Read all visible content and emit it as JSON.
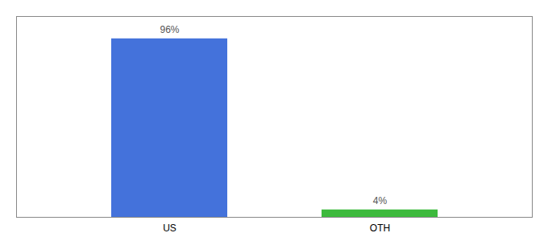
{
  "chart_data": {
    "type": "bar",
    "categories": [
      "US",
      "OTH"
    ],
    "values": [
      96,
      4
    ],
    "value_labels": [
      "96%",
      "4%"
    ],
    "colors": [
      "#4472db",
      "#3dba3d"
    ],
    "ylim": [
      0,
      108
    ],
    "data_labels": true,
    "tick_labels": "x",
    "grid": false
  }
}
